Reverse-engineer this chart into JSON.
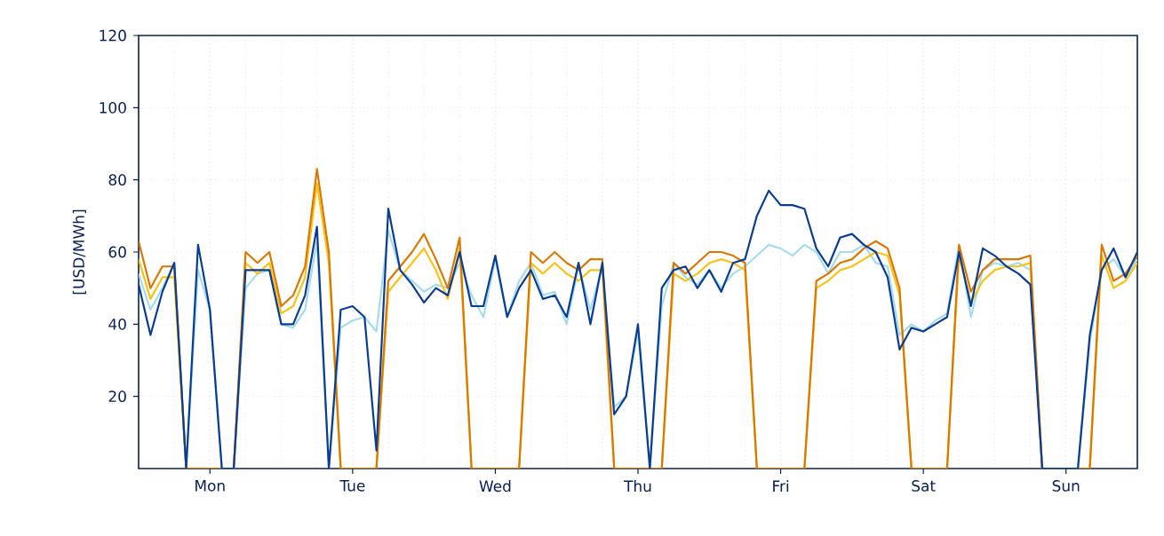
{
  "chart_data": {
    "type": "line",
    "ylabel": "[USD/MWh]",
    "categories": [
      null,
      null,
      null,
      null,
      null,
      null,
      "Mon",
      null,
      null,
      null,
      null,
      null,
      null,
      null,
      null,
      null,
      null,
      null,
      "Tue",
      null,
      null,
      null,
      null,
      null,
      null,
      null,
      null,
      null,
      null,
      null,
      "Wed",
      null,
      null,
      null,
      null,
      null,
      null,
      null,
      null,
      null,
      null,
      null,
      "Thu",
      null,
      null,
      null,
      null,
      null,
      null,
      null,
      null,
      null,
      null,
      null,
      "Fri",
      null,
      null,
      null,
      null,
      null,
      null,
      null,
      null,
      null,
      null,
      null,
      "Sat",
      null,
      null,
      null,
      null,
      null,
      null,
      null,
      null,
      null,
      null,
      null,
      "Sun",
      null,
      null,
      null,
      null,
      null,
      null
    ],
    "ylim": [
      0,
      120
    ],
    "yticks": [
      20,
      40,
      60,
      80,
      100,
      120
    ],
    "grid": true,
    "marker": "none",
    "line_style": "solid",
    "series": [
      {
        "color": "#a6dcea",
        "values": [
          54,
          44,
          50,
          57,
          0,
          55,
          44,
          0,
          0,
          50,
          54,
          55,
          40,
          39,
          44,
          63,
          0,
          39,
          41,
          42,
          38,
          66,
          55,
          52,
          49,
          51,
          50,
          57,
          48,
          42,
          58,
          42,
          52,
          57,
          48,
          49,
          40,
          56,
          44,
          56,
          17,
          20,
          38,
          0,
          45,
          57,
          53,
          51,
          55,
          50,
          54,
          56,
          59,
          62,
          61,
          59,
          62,
          60,
          54,
          60,
          60,
          62,
          57,
          56,
          37,
          40,
          38,
          41,
          43,
          62,
          42,
          55,
          57,
          56,
          57,
          55,
          0,
          0,
          0,
          0,
          35,
          55,
          58,
          53,
          58
        ]
      },
      {
        "color": "#f7c31b",
        "values": [
          58,
          47,
          53,
          53,
          0,
          0,
          0,
          0,
          0,
          57,
          54,
          57,
          43,
          45,
          53,
          79,
          57,
          0,
          0,
          0,
          0,
          49,
          53,
          57,
          61,
          55,
          47,
          61,
          0,
          0,
          0,
          0,
          0,
          57,
          54,
          57,
          54,
          52,
          55,
          55,
          0,
          0,
          0,
          0,
          0,
          54,
          52,
          54,
          57,
          58,
          57,
          55,
          0,
          0,
          0,
          0,
          0,
          50,
          52,
          55,
          56,
          58,
          60,
          59,
          48,
          0,
          0,
          0,
          0,
          59,
          46,
          52,
          55,
          56,
          56,
          57,
          0,
          0,
          0,
          0,
          0,
          59,
          50,
          52,
          57
        ]
      },
      {
        "color": "#d97800",
        "values": [
          63,
          50,
          56,
          56,
          0,
          0,
          0,
          0,
          0,
          60,
          57,
          60,
          45,
          48,
          56,
          83,
          60,
          0,
          0,
          0,
          0,
          52,
          56,
          60,
          65,
          58,
          50,
          64,
          0,
          0,
          0,
          0,
          0,
          60,
          57,
          60,
          57,
          55,
          58,
          58,
          0,
          0,
          0,
          0,
          0,
          57,
          54,
          57,
          60,
          60,
          59,
          57,
          0,
          0,
          0,
          0,
          0,
          52,
          54,
          57,
          58,
          61,
          63,
          61,
          50,
          0,
          0,
          0,
          0,
          62,
          49,
          55,
          58,
          58,
          58,
          59,
          0,
          0,
          0,
          0,
          0,
          62,
          52,
          54,
          59
        ]
      },
      {
        "color": "#0a3d91",
        "values": [
          51,
          37,
          49,
          57,
          0,
          62,
          44,
          0,
          0,
          55,
          55,
          55,
          40,
          40,
          48,
          67,
          0,
          44,
          45,
          42,
          5,
          72,
          55,
          51,
          46,
          50,
          48,
          60,
          45,
          45,
          59,
          42,
          50,
          55,
          47,
          48,
          42,
          57,
          40,
          57,
          15,
          20,
          40,
          0,
          50,
          55,
          56,
          50,
          55,
          49,
          57,
          58,
          70,
          77,
          73,
          73,
          72,
          61,
          56,
          64,
          65,
          62,
          60,
          53,
          33,
          39,
          38,
          40,
          42,
          60,
          45,
          61,
          59,
          56,
          54,
          51,
          0,
          0,
          0,
          0,
          37,
          55,
          61,
          53,
          60
        ]
      }
    ]
  }
}
